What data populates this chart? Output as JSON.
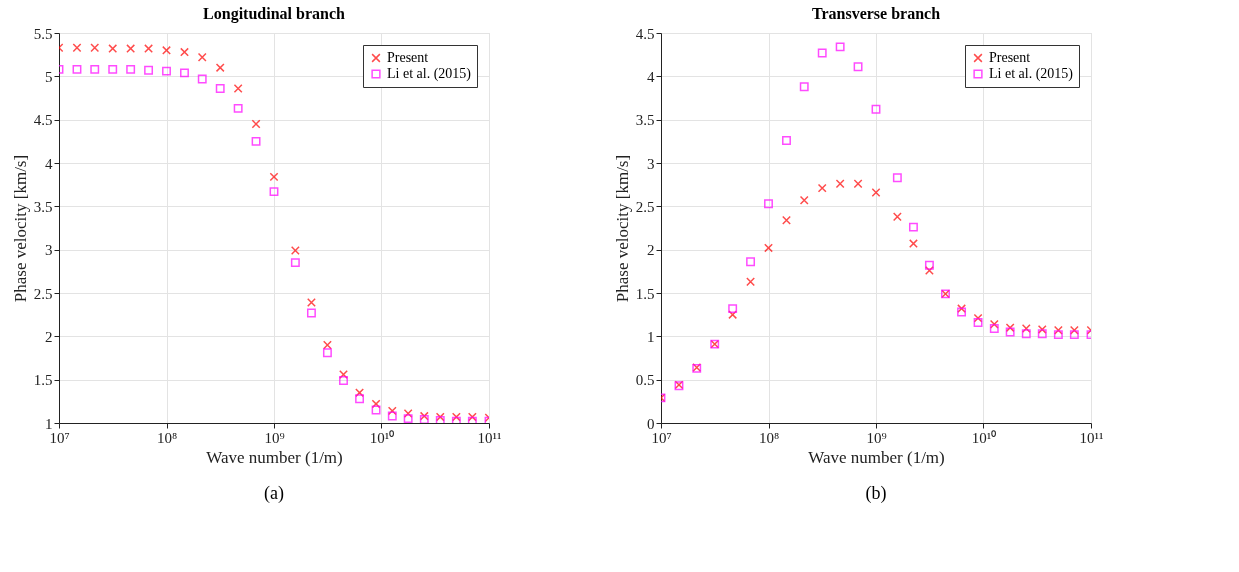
{
  "chart_data": [
    {
      "type": "scatter",
      "title": "Longitudinal branch",
      "xlabel": "Wave number (1/m)",
      "ylabel": "Phase velocity [km/s]",
      "annotations": [
        "(a)"
      ],
      "log": "x",
      "grid": true,
      "legend": "top right",
      "x": [
        10000000.0,
        14700000.0,
        21500000.0,
        31600000.0,
        46400000.0,
        68100000.0,
        100000000.0,
        147000000.0,
        215000000.0,
        316000000.0,
        464000000.0,
        681000000.0,
        1000000000.0,
        1580000000.0,
        2230000000.0,
        3140000000.0,
        4430000000.0,
        6250000000.0,
        8900000000.0,
        12600000000.0,
        17700000000.0,
        25000000000.0,
        35200000000.0,
        49700000000.0,
        70000000000.0,
        100000000000.0
      ],
      "series": [
        {
          "name": "Present",
          "color": "#ff0000",
          "marker": "cross",
          "values": [
            5.33,
            5.33,
            5.33,
            5.32,
            5.32,
            5.32,
            5.3,
            5.28,
            5.22,
            5.1,
            4.86,
            4.45,
            3.84,
            2.99,
            2.39,
            1.9,
            1.56,
            1.35,
            1.22,
            1.14,
            1.11,
            1.08,
            1.07,
            1.07,
            1.07,
            1.06
          ]
        },
        {
          "name": "Li et al. (2015)",
          "color": "#ff00ff",
          "marker": "square",
          "values": [
            5.08,
            5.08,
            5.08,
            5.08,
            5.08,
            5.07,
            5.06,
            5.04,
            4.97,
            4.86,
            4.63,
            4.25,
            3.67,
            2.85,
            2.27,
            1.81,
            1.49,
            1.28,
            1.15,
            1.08,
            1.05,
            1.04,
            1.03,
            1.02,
            1.02,
            1.02
          ]
        }
      ],
      "xlim": [
        10000000.0,
        100000000000.0
      ],
      "xticks": [
        {
          "value": 10000000.0,
          "label": "10⁷"
        },
        {
          "value": 100000000.0,
          "label": "10⁸"
        },
        {
          "value": 1000000000.0,
          "label": "10⁹"
        },
        {
          "value": 10000000000.0,
          "label": "10¹⁰"
        },
        {
          "value": 100000000000.0,
          "label": "10¹¹"
        }
      ],
      "ylim": [
        1,
        5.5
      ],
      "yticks": [
        1,
        1.5,
        2,
        2.5,
        3,
        3.5,
        4,
        4.5,
        5,
        5.5
      ]
    },
    {
      "type": "scatter",
      "title": "Transverse branch",
      "xlabel": "Wave number (1/m)",
      "ylabel": "Phase velocity [km/s]",
      "annotations": [
        "(b)"
      ],
      "log": "x",
      "grid": true,
      "legend": "top right",
      "x": [
        10000000.0,
        14700000.0,
        21500000.0,
        31600000.0,
        46400000.0,
        68100000.0,
        100000000.0,
        147000000.0,
        215000000.0,
        316000000.0,
        464000000.0,
        681000000.0,
        1000000000.0,
        1580000000.0,
        2230000000.0,
        3140000000.0,
        4430000000.0,
        6250000000.0,
        8900000000.0,
        12600000000.0,
        17700000000.0,
        25000000000.0,
        35200000000.0,
        49700000000.0,
        70000000000.0,
        100000000000.0
      ],
      "series": [
        {
          "name": "Present",
          "color": "#ff0000",
          "marker": "cross",
          "values": [
            0.29,
            0.44,
            0.64,
            0.91,
            1.25,
            1.63,
            2.02,
            2.34,
            2.57,
            2.71,
            2.76,
            2.76,
            2.66,
            2.38,
            2.07,
            1.76,
            1.49,
            1.32,
            1.21,
            1.14,
            1.1,
            1.09,
            1.08,
            1.07,
            1.07,
            1.07
          ]
        },
        {
          "name": "Li et al. (2015)",
          "color": "#ff00ff",
          "marker": "square",
          "values": [
            0.29,
            0.43,
            0.63,
            0.91,
            1.32,
            1.86,
            2.53,
            3.26,
            3.88,
            4.27,
            4.34,
            4.11,
            3.62,
            2.83,
            2.26,
            1.82,
            1.49,
            1.28,
            1.16,
            1.09,
            1.05,
            1.03,
            1.03,
            1.02,
            1.02,
            1.02
          ]
        }
      ],
      "xlim": [
        10000000.0,
        100000000000.0
      ],
      "xticks": [
        {
          "value": 10000000.0,
          "label": "10⁷"
        },
        {
          "value": 100000000.0,
          "label": "10⁸"
        },
        {
          "value": 1000000000.0,
          "label": "10⁹"
        },
        {
          "value": 10000000000.0,
          "label": "10¹⁰"
        },
        {
          "value": 100000000000.0,
          "label": "10¹¹"
        }
      ],
      "ylim": [
        0,
        4.5
      ],
      "yticks": [
        0,
        0.5,
        1,
        1.5,
        2,
        2.5,
        3,
        3.5,
        4,
        4.5
      ]
    }
  ]
}
